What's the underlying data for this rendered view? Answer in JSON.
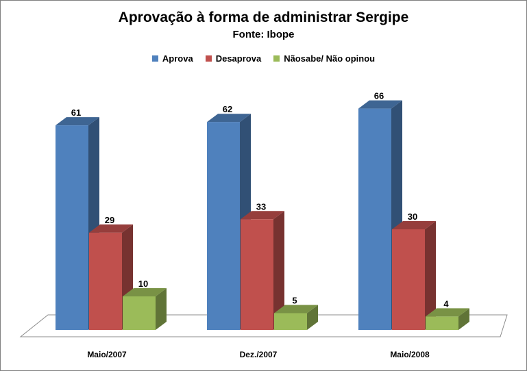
{
  "chart_data": {
    "type": "bar",
    "title": "Aprovação à forma de administrar Sergipe",
    "subtitle": "Fonte: Ibope",
    "categories": [
      "Maio/2007",
      "Dez./2007",
      "Maio/2008"
    ],
    "series": [
      {
        "name": "Aprova",
        "values": [
          61,
          62,
          66
        ],
        "color": "#4F81BD"
      },
      {
        "name": "Desaprova",
        "values": [
          29,
          33,
          30
        ],
        "color": "#C0504D"
      },
      {
        "name": "Nãosabe/ Não opinou",
        "values": [
          10,
          5,
          4
        ],
        "color": "#9BBB59"
      }
    ],
    "ylim": [
      0,
      70
    ],
    "legend_position": "top",
    "grid": false,
    "style": "3d-column"
  }
}
